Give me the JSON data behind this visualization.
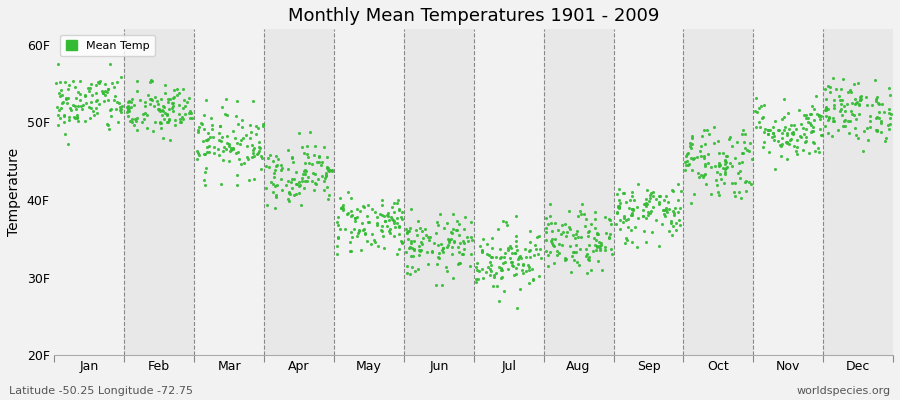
{
  "title": "Monthly Mean Temperatures 1901 - 2009",
  "ylabel": "Temperature",
  "xlabel_months": [
    "Jan",
    "Feb",
    "Mar",
    "Apr",
    "May",
    "Jun",
    "Jul",
    "Aug",
    "Sep",
    "Oct",
    "Nov",
    "Dec"
  ],
  "footer_left": "Latitude -50.25 Longitude -72.75",
  "footer_right": "worldspecies.org",
  "legend_label": "Mean Temp",
  "dot_color": "#33bb33",
  "bg_color": "#f2f2f2",
  "stripe_light": "#f2f2f2",
  "stripe_dark": "#e8e8e8",
  "ylim": [
    20,
    62
  ],
  "yticks": [
    20,
    30,
    40,
    50,
    60
  ],
  "ytick_labels": [
    "20F",
    "30F",
    "40F",
    "50F",
    "60F"
  ],
  "n_years": 109,
  "monthly_means_F": [
    52.5,
    51.5,
    47.5,
    43.5,
    37.0,
    34.0,
    32.5,
    34.5,
    38.5,
    45.0,
    49.0,
    51.5
  ],
  "monthly_stds_F": [
    2.0,
    1.8,
    2.2,
    2.0,
    2.0,
    2.0,
    2.2,
    2.0,
    2.0,
    2.5,
    2.0,
    2.0
  ],
  "monthly_mins_F": [
    47.0,
    47.0,
    42.0,
    39.0,
    33.0,
    29.0,
    26.0,
    29.0,
    34.0,
    39.0,
    44.0,
    46.0
  ],
  "monthly_maxs_F": [
    57.5,
    56.0,
    53.0,
    49.0,
    41.0,
    39.0,
    38.5,
    39.5,
    44.0,
    51.0,
    55.0,
    57.0
  ]
}
